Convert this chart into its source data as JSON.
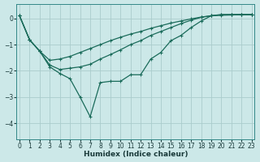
{
  "xlabel": "Humidex (Indice chaleur)",
  "bg_color": "#cce8e8",
  "grid_color": "#aacccc",
  "line_color": "#1a6b5a",
  "xlim": [
    -0.3,
    23.3
  ],
  "ylim": [
    -4.6,
    0.55
  ],
  "yticks": [
    0,
    -1,
    -2,
    -3,
    -4
  ],
  "xticks": [
    0,
    1,
    2,
    3,
    4,
    5,
    6,
    7,
    8,
    9,
    10,
    11,
    12,
    13,
    14,
    15,
    16,
    17,
    18,
    19,
    20,
    21,
    22,
    23
  ],
  "lineA_x": [
    0,
    1,
    2,
    3,
    4,
    5,
    6,
    7,
    8,
    9,
    10,
    11,
    12,
    13,
    14,
    15,
    16,
    17,
    18,
    19,
    20,
    21,
    22,
    23
  ],
  "lineA_y": [
    0.1,
    -0.82,
    -1.25,
    -1.6,
    -1.55,
    -1.45,
    -1.3,
    -1.15,
    -1.0,
    -0.85,
    -0.72,
    -0.6,
    -0.5,
    -0.38,
    -0.28,
    -0.18,
    -0.1,
    -0.02,
    0.05,
    0.1,
    0.12,
    0.13,
    0.14,
    0.14
  ],
  "lineB_x": [
    0,
    1,
    2,
    3,
    4,
    5,
    6,
    7,
    8,
    9,
    10,
    11,
    12,
    13,
    14,
    15,
    16,
    17,
    18,
    19,
    20,
    21,
    22,
    23
  ],
  "lineB_y": [
    0.1,
    -0.82,
    -1.25,
    -1.78,
    -1.95,
    -1.9,
    -1.85,
    -1.75,
    -1.55,
    -1.38,
    -1.2,
    -1.0,
    -0.85,
    -0.65,
    -0.5,
    -0.35,
    -0.2,
    -0.07,
    0.04,
    0.1,
    0.13,
    0.13,
    0.14,
    0.14
  ],
  "lineC_x": [
    0,
    1,
    2,
    3,
    4,
    5,
    6,
    7,
    8,
    9,
    10,
    11,
    12,
    13,
    14,
    15,
    16,
    17,
    18,
    19,
    20,
    21,
    22,
    23
  ],
  "lineC_y": [
    0.1,
    -0.82,
    -1.25,
    -1.85,
    -2.1,
    -2.3,
    -3.0,
    -3.75,
    -2.45,
    -2.4,
    -2.4,
    -2.15,
    -2.15,
    -1.55,
    -1.3,
    -0.85,
    -0.65,
    -0.35,
    -0.1,
    0.1,
    0.15,
    0.15,
    0.15,
    0.15
  ]
}
